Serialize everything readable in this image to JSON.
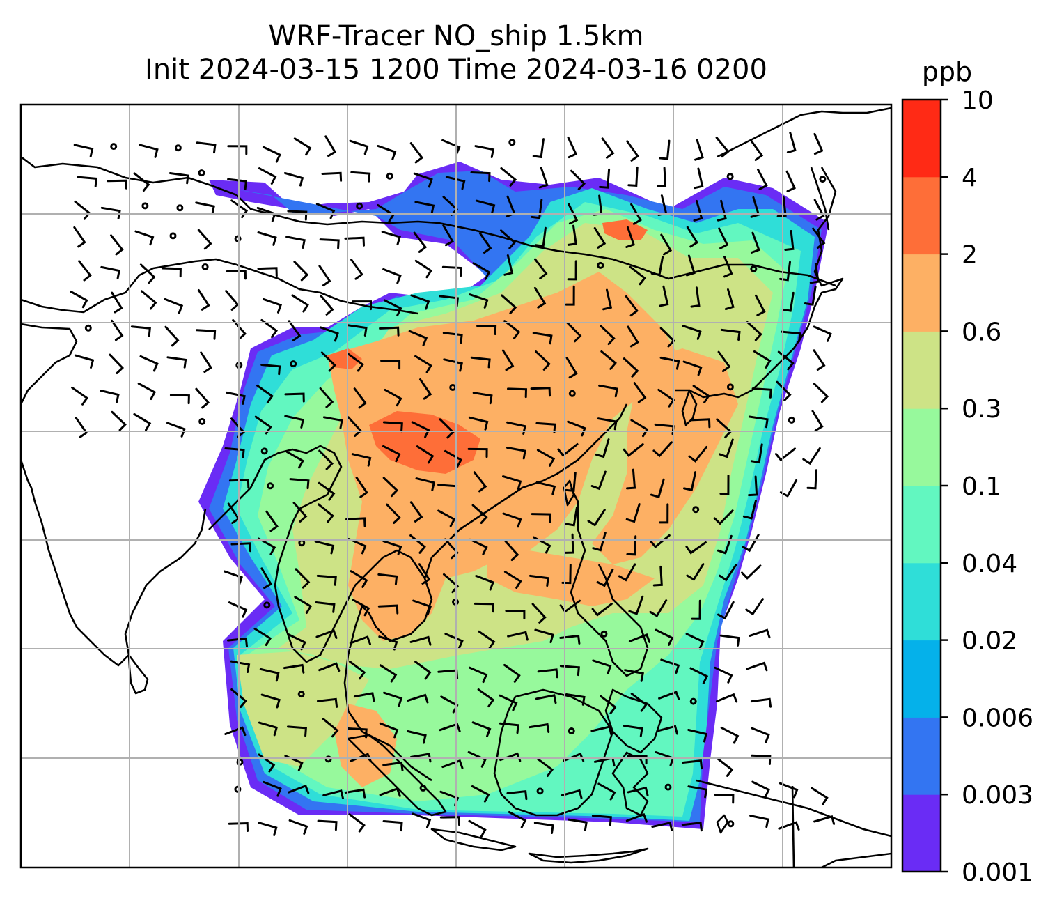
{
  "title": {
    "line1": "WRF-Tracer NO_ship 1.5km",
    "line2": "Init 2024-03-15 1200 Time 2024-03-16 0200"
  },
  "colorbar": {
    "unit": "ppb",
    "ticks": [
      "0.001",
      "0.003",
      "0.006",
      "0.02",
      "0.04",
      "0.1",
      "0.3",
      "0.6",
      "2",
      "4",
      "10"
    ],
    "colors": [
      "#6a2cf5",
      "#3375f2",
      "#05b1ea",
      "#2fded8",
      "#62f7c0",
      "#97f99c",
      "#cde386",
      "#fdb064",
      "#fe6e38",
      "#ff2a15"
    ]
  },
  "map": {
    "gridlines": "on",
    "grid_color": "#b0b0b0",
    "coastline_color": "#000000",
    "overlay": "wind-barbs"
  }
}
